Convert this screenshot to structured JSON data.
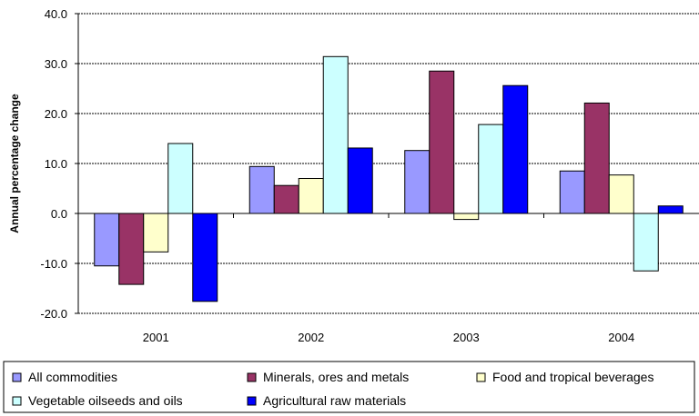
{
  "chart_data": {
    "type": "bar",
    "title": "",
    "xlabel": "",
    "ylabel": "Annual percentage change",
    "ylim": [
      -20,
      40
    ],
    "yticks": [
      "-20.0",
      "-10.0",
      "0.0",
      "10.0",
      "20.0",
      "30.0",
      "40.0"
    ],
    "grid": true,
    "legend_position": "bottom",
    "categories": [
      "2001",
      "2002",
      "2003",
      "2004"
    ],
    "series": [
      {
        "name": "All commodities",
        "color": "#9999ff",
        "values": [
          -10.5,
          9.4,
          12.6,
          8.5
        ]
      },
      {
        "name": "Minerals, ores and metals",
        "color": "#993366",
        "values": [
          -14.2,
          5.6,
          28.5,
          22.1
        ]
      },
      {
        "name": "Food and tropical beverages",
        "color": "#ffffcc",
        "values": [
          -7.7,
          7.0,
          -1.2,
          7.7
        ]
      },
      {
        "name": "Vegetable oilseeds and oils",
        "color": "#ccffff",
        "values": [
          14.0,
          31.4,
          17.8,
          -11.5
        ]
      },
      {
        "name": "Agricultural raw materials",
        "color": "#0000ff",
        "values": [
          -17.6,
          13.1,
          25.6,
          1.5
        ]
      }
    ]
  }
}
